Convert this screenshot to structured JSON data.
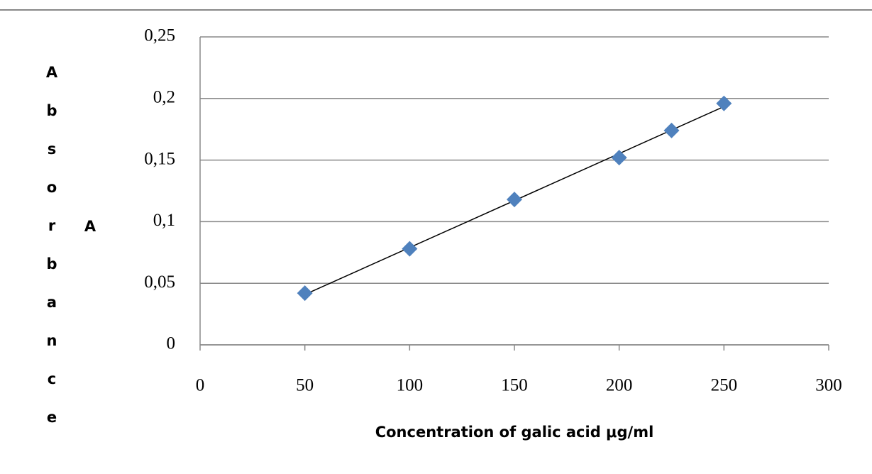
{
  "chart_data": {
    "type": "scatter",
    "y_label": "Absorbance",
    "y_label_symbol": "A",
    "x_label": "Concentration of galic acid μg/ml",
    "series": [
      {
        "name": "Absorbance",
        "color": "#4f81bd",
        "x": [
          50,
          100,
          150,
          200,
          225,
          250
        ],
        "values": [
          0.042,
          0.078,
          0.118,
          0.152,
          0.174,
          0.196
        ]
      }
    ],
    "trendline": true,
    "xlim": [
      0,
      300
    ],
    "xticks": [
      0,
      50,
      100,
      150,
      200,
      250,
      300
    ],
    "ylim": [
      0,
      0.25
    ],
    "yticks": [
      0,
      {
        "value": 0.05,
        "label": "0,05"
      },
      {
        "value": 0.1,
        "label": "0,1"
      },
      {
        "value": 0.15,
        "label": "0,15"
      },
      {
        "value": 0.2,
        "label": "0,2"
      },
      {
        "value": 0.25,
        "label": "0,25"
      }
    ],
    "grid": true
  }
}
